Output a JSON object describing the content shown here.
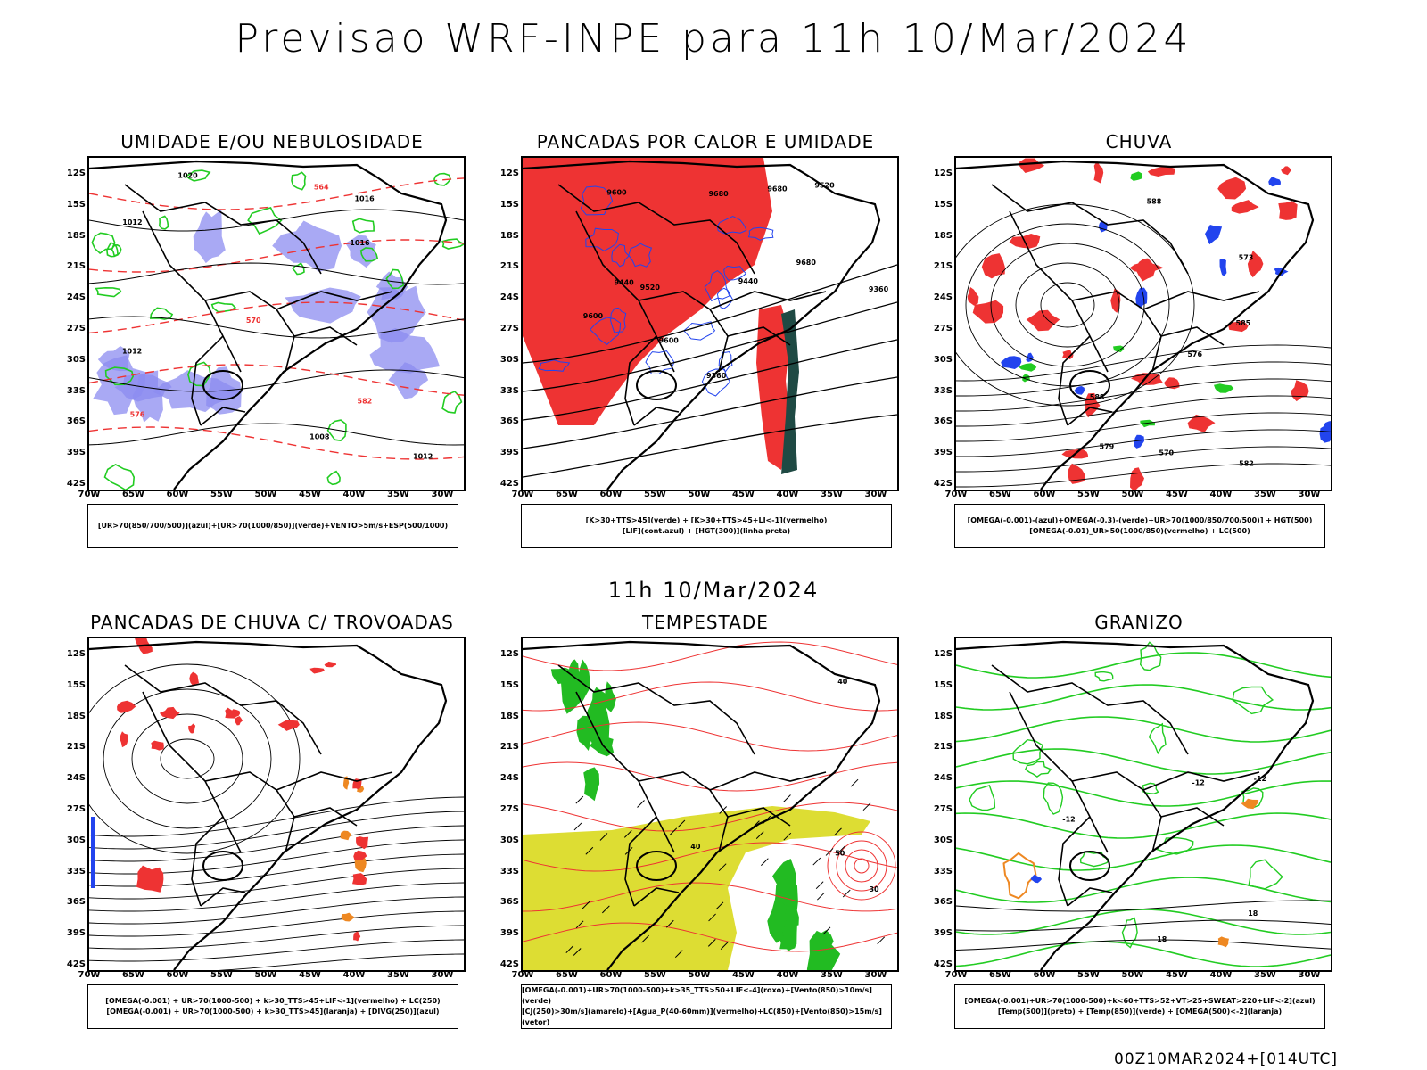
{
  "title": "Previsao WRF-INPE  para 11h 10/Mar/2024",
  "row_title": "11h 10/Mar/2024",
  "footer": "00Z10MAR2024+[014UTC]",
  "lat_labels": [
    "12S",
    "15S",
    "18S",
    "21S",
    "24S",
    "27S",
    "30S",
    "33S",
    "36S",
    "39S",
    "42S"
  ],
  "lon_labels": [
    "70W",
    "65W",
    "60W",
    "55W",
    "50W",
    "45W",
    "40W",
    "35W",
    "30W"
  ],
  "colors": {
    "blue_fill": "#8c8cf0",
    "green": "#22cc22",
    "red": "#ee3333",
    "orange": "#ee8822",
    "yellow": "#dddd33",
    "dark_teal": "#1f4a44",
    "blue": "#2244ee"
  },
  "panels": [
    {
      "title": "UMIDADE E/OU NEBULOSIDADE",
      "legend": [
        "[UR>70(850/700/500)](azul)+[UR>70(1000/850)](verde)+VENTO>5m/s+ESP(500/1000)"
      ],
      "contour_labels": [
        "1012",
        "1012",
        "1020",
        "1016",
        "1008",
        "1012",
        "1016",
        "576",
        "582",
        "570",
        "564"
      ]
    },
    {
      "title": "PANCADAS POR CALOR E UMIDADE",
      "legend": [
        "[K>30+TTS>45](verde) + [K>30+TTS>45+LI<-1](vermelho)",
        "[LIF](cont.azul) + [HGT(300)](linha preta)"
      ],
      "contour_labels": [
        "9680",
        "9680",
        "9680",
        "9600",
        "9600",
        "9520",
        "9440",
        "9360",
        "9600",
        "9520",
        "9440",
        "9360"
      ]
    },
    {
      "title": "CHUVA",
      "legend": [
        "[OMEGA(-0.001)-(azul)+OMEGA(-0.3)-(verde)+UR>70(1000/850/700/500)] + HGT(500)",
        "[OMEGA(-0.01)_UR>50(1000/850)(vermelho) + LC(500)"
      ],
      "contour_labels": [
        "588",
        "588",
        "585",
        "582",
        "579",
        "576",
        "573",
        "570"
      ]
    },
    {
      "title": "PANCADAS DE CHUVA C/ TROVOADAS",
      "legend": [
        "[OMEGA(-0.001) + UR>70(1000-500) + k>30_TTS>45+LIF<-1](vermelho) + LC(250)",
        "[OMEGA(-0.001) + UR>70(1000-500) + k>30_TTS>45](laranja) + [DIVG(250)](azul)"
      ],
      "contour_labels": []
    },
    {
      "title": "TEMPESTADE",
      "legend": [
        "[OMEGA(-0.001)+UR>70(1000-500)+k>35_TTS>50+LIF<-4](roxo)+[Vento(850)>10m/s](verde)",
        "[CJ(250)>30m/s](amarelo)+[Agua_P(40-60mm)](vermelho)+LC(850)+[Vento(850)>15m/s](vetor)"
      ],
      "contour_labels": [
        "40",
        "30",
        "50",
        "40"
      ]
    },
    {
      "title": "GRANIZO",
      "legend": [
        "[OMEGA(-0.001)+UR>70(1000-500)+k<60+TTS>52+VT>25+SWEAT>220+LIF<-2](azul)",
        "[Temp(500)](preto) + [Temp(850)](verde) + [OMEGA(500)<-2](laranja)"
      ],
      "contour_labels": [
        "-12",
        "-12",
        "-12",
        "18",
        "18"
      ]
    }
  ]
}
